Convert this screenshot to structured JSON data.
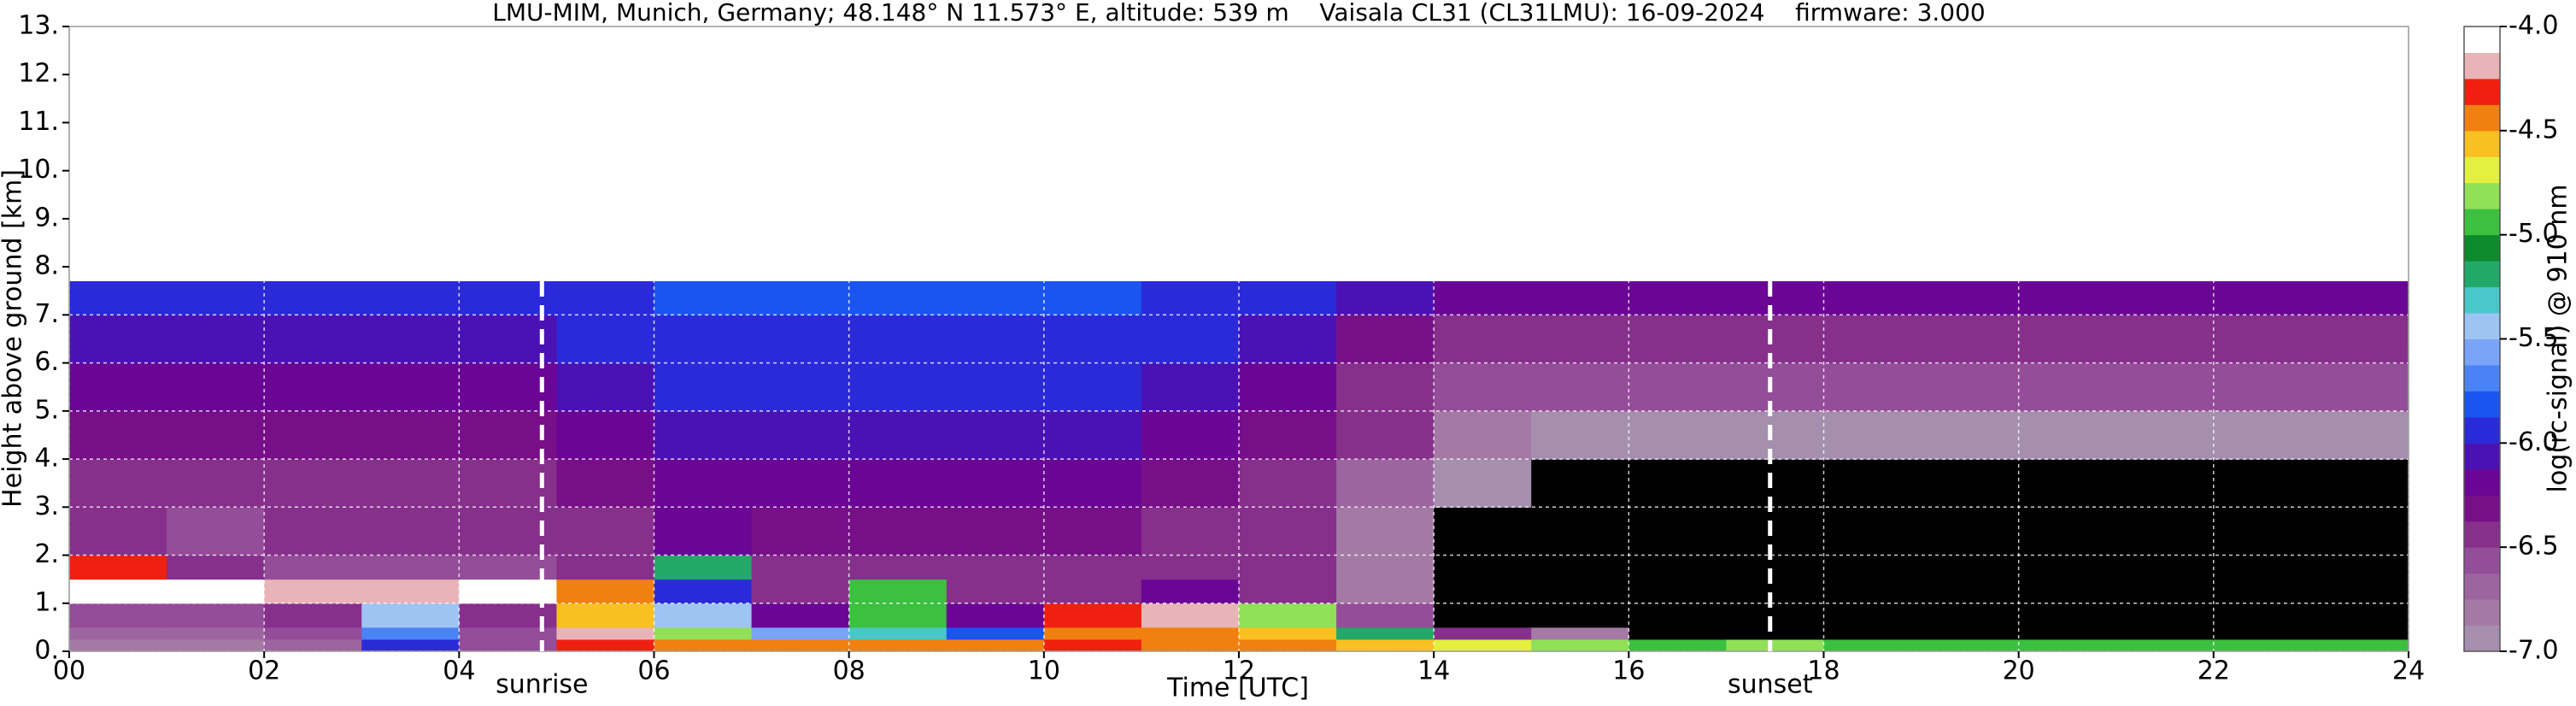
{
  "chart_data": {
    "type": "heatmap",
    "title": "LMU-MIM, Munich, Germany; 48.148° N 11.573° E, altitude: 539 m    Vaisala CL31 (CL31LMU): 16-09-2024    firmware: 3.000",
    "xlabel": "Time [UTC]",
    "ylabel": "Height above ground [km]",
    "colorbar_label": "log(rc-signal) @ 910 nm",
    "xlim": [
      0,
      24
    ],
    "xticks": [
      {
        "value": 0,
        "label": "00"
      },
      {
        "value": 2,
        "label": "02"
      },
      {
        "value": 4,
        "label": "04"
      },
      {
        "value": 6,
        "label": "06"
      },
      {
        "value": 8,
        "label": "08"
      },
      10,
      12,
      14,
      16,
      18,
      20,
      22,
      24
    ],
    "ylim": [
      0,
      13
    ],
    "yticks": [
      {
        "value": 0,
        "label": "0."
      },
      {
        "value": 1,
        "label": "1."
      },
      {
        "value": 2,
        "label": "2."
      },
      {
        "value": 3,
        "label": "3."
      },
      {
        "value": 4,
        "label": "4."
      },
      {
        "value": 5,
        "label": "5."
      },
      {
        "value": 6,
        "label": "6."
      },
      {
        "value": 7,
        "label": "7."
      },
      {
        "value": 8,
        "label": "8."
      },
      {
        "value": 9,
        "label": "9."
      },
      {
        "value": 10,
        "label": "10."
      },
      {
        "value": 11,
        "label": "11."
      },
      {
        "value": 12,
        "label": "12."
      },
      {
        "value": 13,
        "label": "13."
      }
    ],
    "clim": [
      -7,
      -4
    ],
    "cticks": [
      {
        "value": -7,
        "label": "-7.0"
      },
      {
        "value": -6.5,
        "label": "-6.5"
      },
      {
        "value": -6,
        "label": "-6.0"
      },
      {
        "value": -5.5,
        "label": "-5.5"
      },
      {
        "value": -5,
        "label": "-5.0"
      },
      {
        "value": -4.5,
        "label": "-4.5"
      },
      {
        "value": -4,
        "label": "-4.0"
      }
    ],
    "colorscale": [
      "#a68fae",
      "#a47aa4",
      "#9d65a0",
      "#944d98",
      "#86308c",
      "#770f88",
      "#6a0596",
      "#4a12b4",
      "#2a2ad8",
      "#1a55f0",
      "#4a84f4",
      "#7aa4f8",
      "#9ec4f4",
      "#48c8c8",
      "#22a868",
      "#0c8a2c",
      "#3cc040",
      "#90e058",
      "#e4f040",
      "#f8c020",
      "#f08010",
      "#f02010",
      "#e8b4b8",
      "#ffffff"
    ],
    "under_color": "#000000",
    "grid": true,
    "xbins": [
      0,
      1,
      2,
      3,
      4,
      5,
      6,
      7,
      8,
      9,
      10,
      11,
      12,
      13,
      14,
      15,
      16,
      17,
      18,
      19,
      20,
      21,
      22,
      23,
      24
    ],
    "ybins": [
      0,
      0.25,
      0.5,
      1,
      1.5,
      2,
      3,
      4,
      5,
      6,
      7,
      7.7
    ],
    "z": [
      [
        -6.8,
        -6.8,
        -6.7,
        -6.0,
        -6.6,
        -4.3,
        -4.4,
        -4.5,
        -4.4,
        -4.5,
        -4.3,
        -4.4,
        -4.4,
        -4.6,
        -4.7,
        -4.8,
        -4.9,
        -4.8,
        -4.9,
        -4.9,
        -5.0,
        -4.9,
        -4.9,
        -5.0
      ],
      [
        -6.7,
        -6.7,
        -6.6,
        -5.7,
        -6.6,
        -4.2,
        -4.8,
        -5.6,
        -5.3,
        -5.8,
        -4.4,
        -4.5,
        -4.6,
        -5.2,
        -6.5,
        -6.8,
        -7.3,
        -7.4,
        -7.4,
        -7.4,
        -7.3,
        -7.4,
        -7.3,
        -7.4
      ],
      [
        -6.6,
        -6.6,
        -6.5,
        -5.5,
        -6.5,
        -4.6,
        -5.5,
        -6.2,
        -5.0,
        -6.2,
        -4.3,
        -4.2,
        -4.8,
        -6.6,
        -7.2,
        -7.4,
        -7.5,
        -7.5,
        -7.5,
        -7.5,
        -7.5,
        -7.5,
        -7.5,
        -7.5
      ],
      [
        -4.1,
        -4.1,
        -4.2,
        -4.2,
        -4.1,
        -4.4,
        -6.0,
        -6.4,
        -4.9,
        -6.5,
        -6.4,
        -6.2,
        -6.4,
        -6.8,
        -7.2,
        -7.4,
        -7.5,
        -7.5,
        -7.5,
        -7.5,
        -7.5,
        -7.5,
        -7.5,
        -7.5
      ],
      [
        -4.3,
        -6.5,
        -6.6,
        -6.6,
        -6.6,
        -6.4,
        -5.2,
        -6.5,
        -6.4,
        -6.5,
        -6.5,
        -6.4,
        -6.5,
        -6.8,
        -7.2,
        -7.4,
        -7.5,
        -7.5,
        -7.5,
        -7.5,
        -7.5,
        -7.5,
        -7.5,
        -7.5
      ],
      [
        -6.5,
        -6.6,
        -6.5,
        -6.5,
        -6.5,
        -6.4,
        -6.2,
        -6.3,
        -6.3,
        -6.3,
        -6.3,
        -6.4,
        -6.5,
        -6.8,
        -7.1,
        -7.3,
        -7.4,
        -7.4,
        -7.4,
        -7.4,
        -7.4,
        -7.4,
        -7.4,
        -7.4
      ],
      [
        -6.4,
        -6.4,
        -6.4,
        -6.4,
        -6.4,
        -6.3,
        -6.2,
        -6.2,
        -6.2,
        -6.2,
        -6.2,
        -6.3,
        -6.4,
        -6.7,
        -7.0,
        -7.2,
        -7.3,
        -7.2,
        -7.2,
        -7.2,
        -7.2,
        -7.2,
        -7.2,
        -7.2
      ],
      [
        -6.3,
        -6.3,
        -6.3,
        -6.3,
        -6.3,
        -6.2,
        -6.1,
        -6.1,
        -6.1,
        -6.1,
        -6.1,
        -6.2,
        -6.3,
        -6.5,
        -6.8,
        -6.9,
        -6.9,
        -6.9,
        -6.9,
        -6.9,
        -6.9,
        -6.9,
        -6.9,
        -6.9
      ],
      [
        -6.2,
        -6.2,
        -6.2,
        -6.2,
        -6.2,
        -6.1,
        -6.0,
        -6.0,
        -6.0,
        -6.0,
        -6.0,
        -6.1,
        -6.2,
        -6.4,
        -6.6,
        -6.6,
        -6.6,
        -6.6,
        -6.6,
        -6.6,
        -6.6,
        -6.6,
        -6.6,
        -6.6
      ],
      [
        -6.1,
        -6.1,
        -6.1,
        -6.1,
        -6.1,
        -6.0,
        -5.9,
        -5.9,
        -5.9,
        -5.9,
        -5.9,
        -6.0,
        -6.1,
        -6.3,
        -6.4,
        -6.4,
        -6.4,
        -6.4,
        -6.4,
        -6.4,
        -6.4,
        -6.4,
        -6.4,
        -6.4
      ],
      [
        -6.0,
        -6.0,
        -6.0,
        -6.0,
        -6.0,
        -5.9,
        -5.8,
        -5.8,
        -5.8,
        -5.8,
        -5.8,
        -5.9,
        -6.0,
        -6.1,
        -6.2,
        -6.2,
        -6.2,
        -6.2,
        -6.2,
        -6.2,
        -6.2,
        -6.2,
        -6.2,
        -6.2
      ]
    ],
    "annotations": [
      {
        "text": "sunrise",
        "x": 4.85
      },
      {
        "text": "sunset",
        "x": 17.45
      }
    ]
  }
}
